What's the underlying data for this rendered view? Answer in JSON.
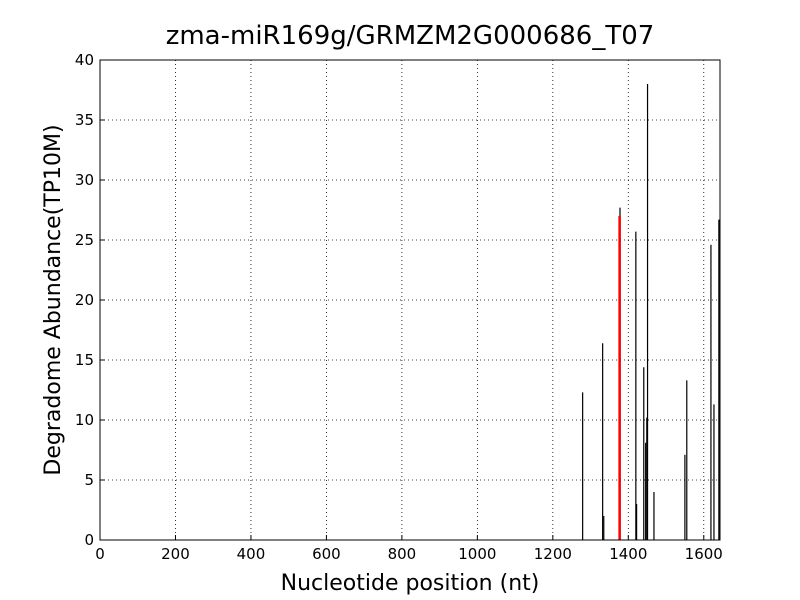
{
  "chart_data": {
    "type": "stem",
    "title": "zma-miR169g/GRMZM2G000686_T07",
    "x_label": "Nucleotide position (nt)",
    "y_label": "Degradome Abundance(TP10M)",
    "x": [
      1279,
      1332,
      1335,
      1378,
      1420,
      1422,
      1441,
      1446,
      1449,
      1451,
      1468,
      1550,
      1555,
      1619,
      1627,
      1640
    ],
    "values": [
      12.3,
      16.4,
      2,
      27.7,
      25.7,
      3,
      14.4,
      8.1,
      10.2,
      38,
      4,
      7.1,
      13.3,
      24.6,
      11.3,
      26.7
    ],
    "color": "#000000",
    "highlight": {
      "x": [
        1377
      ],
      "values": [
        27
      ],
      "color": "#ff0000"
    },
    "xlim": [
      0,
      1643
    ],
    "xticks": [
      0,
      200,
      400,
      600,
      800,
      1000,
      1200,
      1400,
      1600
    ],
    "ylim": [
      0,
      40
    ],
    "yticks": [
      0,
      5,
      10,
      15,
      20,
      25,
      30,
      35,
      40
    ],
    "grid": true
  }
}
